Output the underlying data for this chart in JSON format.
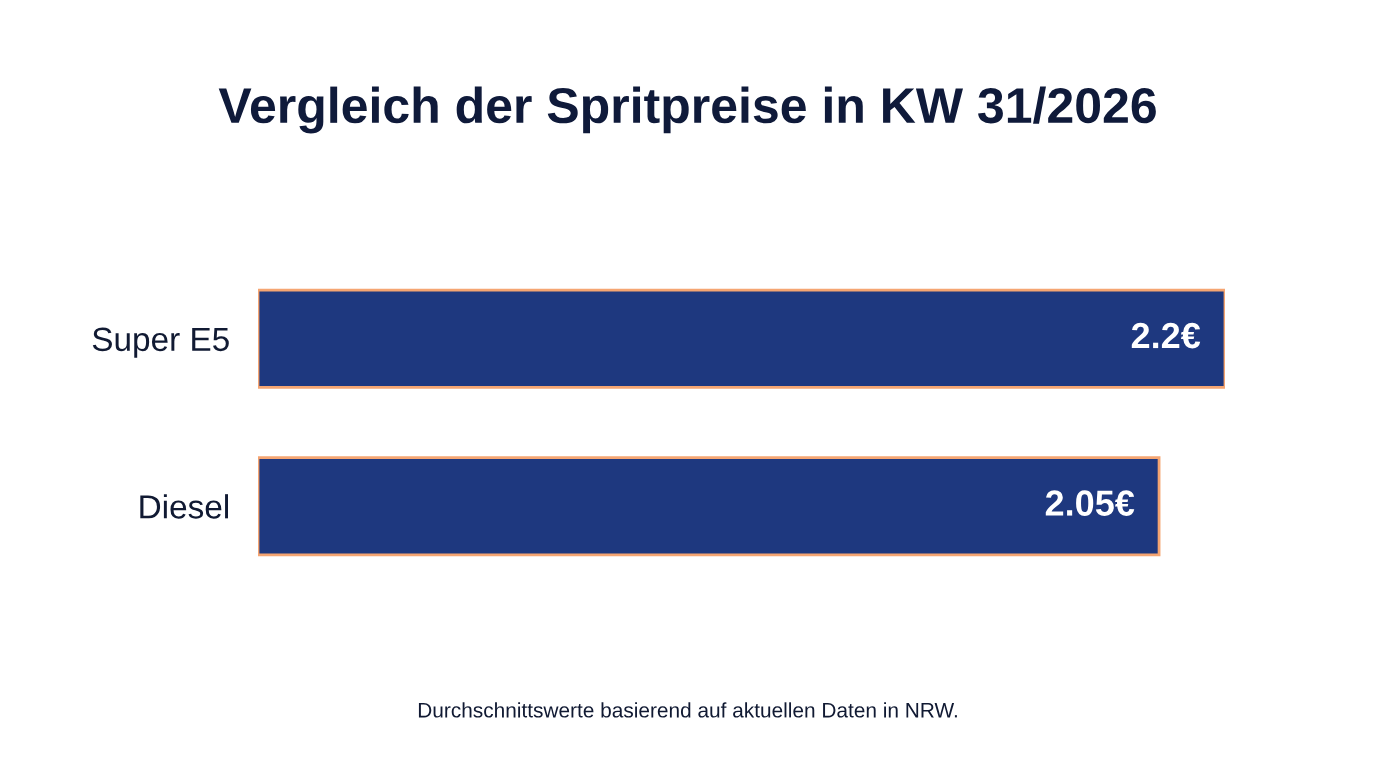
{
  "chart_data": {
    "type": "bar",
    "orientation": "horizontal",
    "title": "Vergleich der Spritpreise in KW 31/2026",
    "categories": [
      "Super E5",
      "Diesel"
    ],
    "values": [
      2.2,
      2.05
    ],
    "value_labels": [
      "2.2€",
      "2.05€"
    ],
    "color": "#1e387f",
    "grid": false,
    "annotations": [
      "Durchschnittswerte basierend auf aktuellen Daten in NRW."
    ]
  }
}
